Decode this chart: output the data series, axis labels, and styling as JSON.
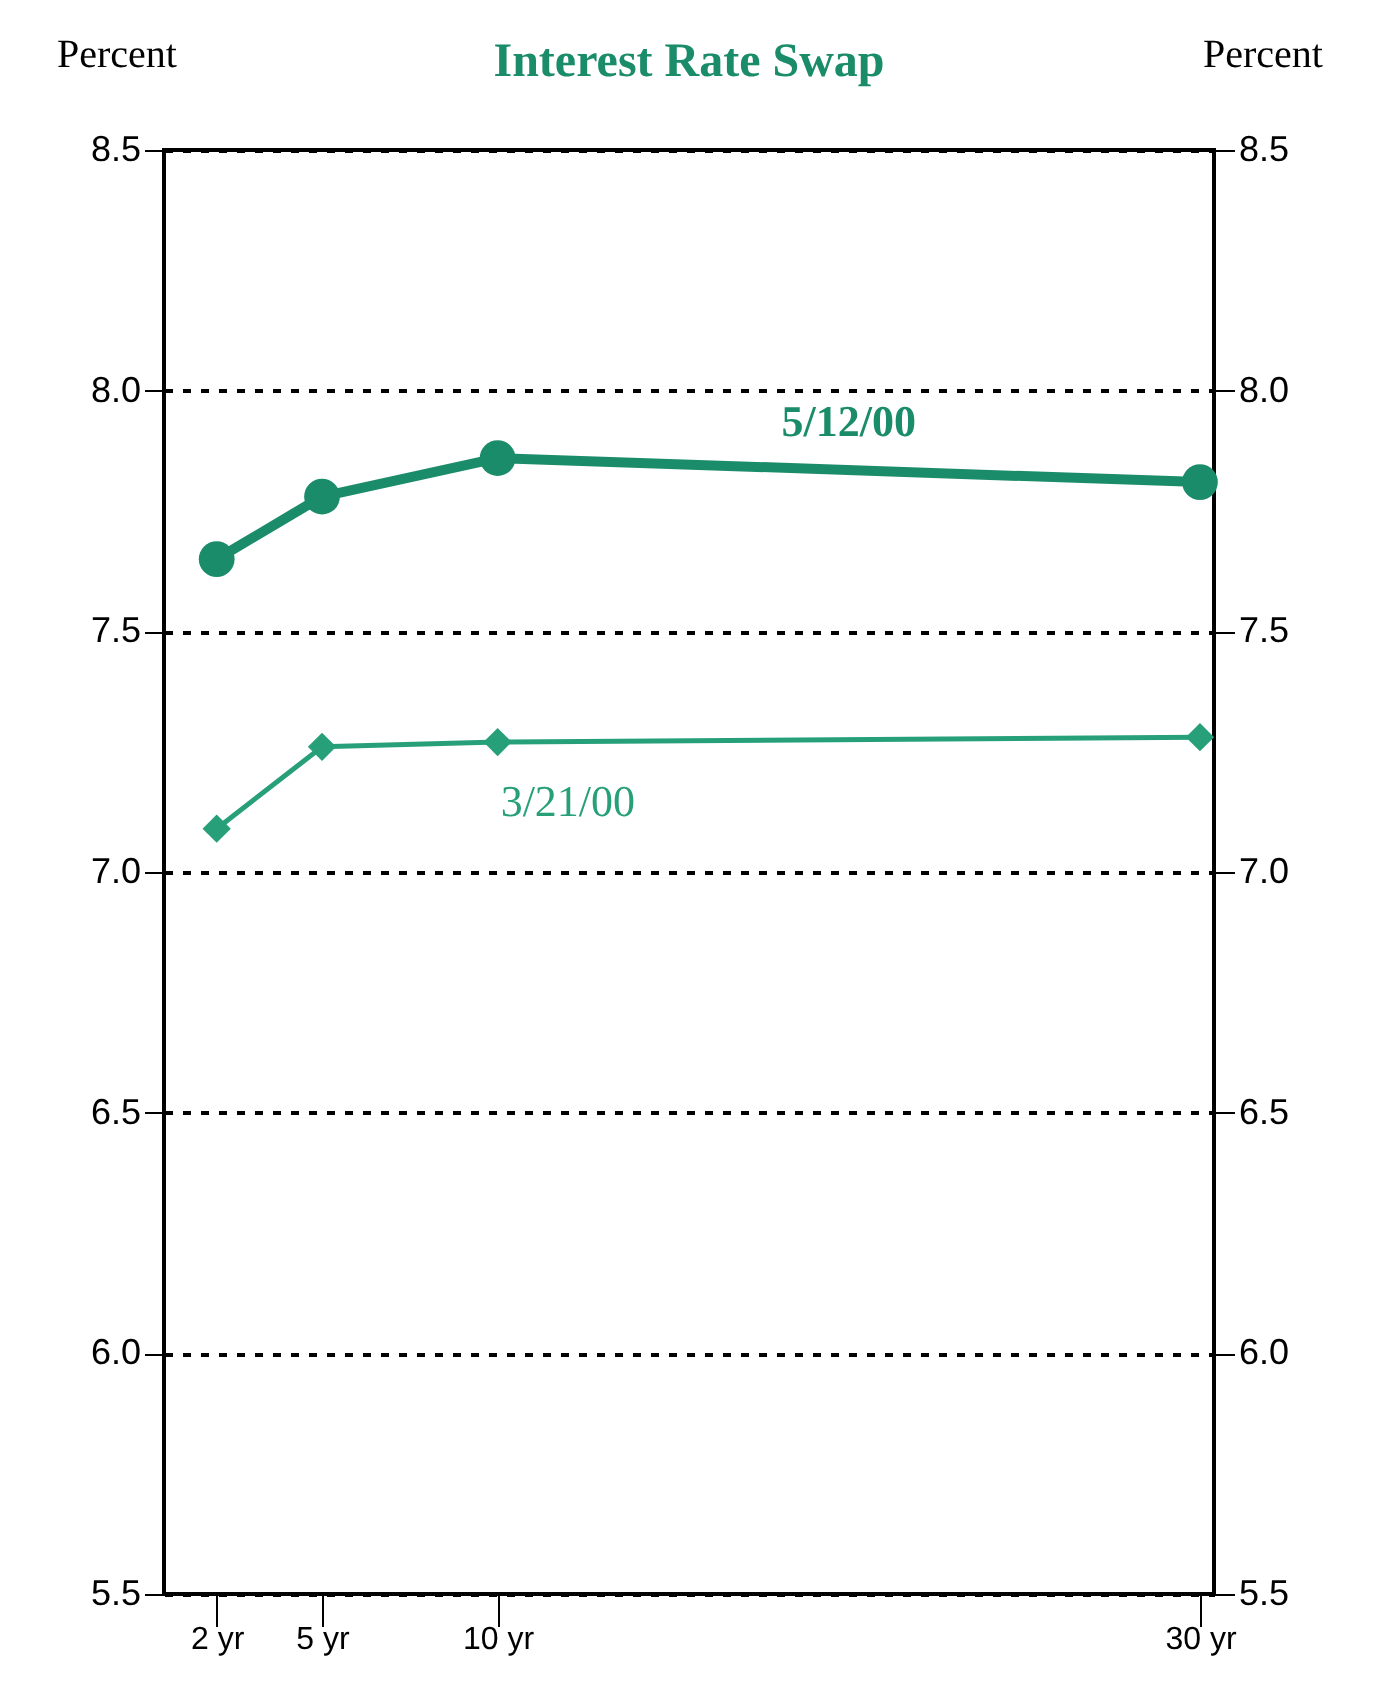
{
  "chart_data": {
    "type": "line",
    "title": "Interest Rate Swap",
    "ylabel": "Percent",
    "y2label": "Percent",
    "x": [
      2,
      5,
      10,
      30
    ],
    "xlim": [
      0.5,
      30.4
    ],
    "xticks": [
      {
        "value": 2,
        "label": "2 yr"
      },
      {
        "value": 5,
        "label": "5 yr"
      },
      {
        "value": 10,
        "label": "10 yr"
      },
      {
        "value": 30,
        "label": "30 yr"
      }
    ],
    "ylim": [
      5.5,
      8.5
    ],
    "yticks": [
      5.5,
      {
        "value": 6,
        "label": "6.0"
      },
      6.5,
      {
        "value": 7,
        "label": "7.0"
      },
      7.5,
      {
        "value": 8,
        "label": "8.0"
      },
      8.5
    ],
    "y2lim": [
      5.5,
      8.5
    ],
    "y2ticks": [
      5.5,
      {
        "value": 6,
        "label": "6.0"
      },
      6.5,
      {
        "value": 7,
        "label": "7.0"
      },
      7.5,
      {
        "value": 8,
        "label": "8.0"
      },
      8.5
    ],
    "grid": "y",
    "series": [
      {
        "name": "5/12/00",
        "color": "#1b8c69",
        "marker": "circle",
        "values": [
          7.65,
          7.78,
          7.86,
          7.81
        ]
      },
      {
        "name": "3/21/00",
        "color": "#27a07a",
        "marker": "diamond",
        "values": [
          7.09,
          7.26,
          7.27,
          7.28
        ]
      }
    ]
  }
}
